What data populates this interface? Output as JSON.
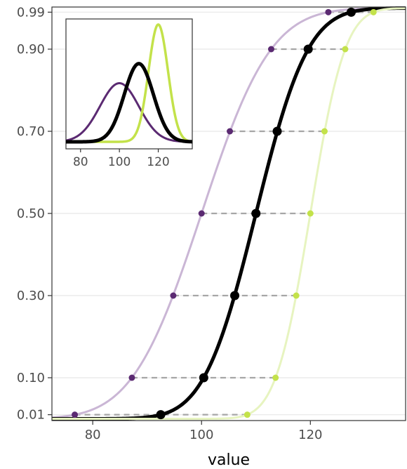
{
  "chart_data": {
    "type": "line",
    "title": "",
    "xlabel": "value",
    "ylabel": "",
    "xlim": [
      72.5,
      137.5
    ],
    "ylim": [
      0.0,
      1.0
    ],
    "x_ticks": [
      80,
      100,
      120
    ],
    "x_tick_labels": [
      "80",
      "100",
      "120"
    ],
    "y_ticks": [
      0.01,
      0.1,
      0.3,
      0.5,
      0.7,
      0.9,
      0.99
    ],
    "y_tick_labels": [
      "0.01",
      "0.10",
      "0.30",
      "0.50",
      "0.70",
      "0.90",
      "0.99"
    ],
    "grid": "horizontal major gridlines at y ticks",
    "legend": "none",
    "colors": {
      "left": "#5b2a72",
      "left_light": "#cab6d5",
      "middle": "#000000",
      "right": "#c3e24a",
      "right_light": "#e7f4c0",
      "connector": "#a6a6a6"
    },
    "series": [
      {
        "color": "#5b2a72",
        "distribution": {
          "mean": 100,
          "sd": 10
        },
        "points": [
          {
            "x": 76.7,
            "y": 0.01
          },
          {
            "x": 87.2,
            "y": 0.1
          },
          {
            "x": 94.8,
            "y": 0.3
          },
          {
            "x": 100.0,
            "y": 0.5
          },
          {
            "x": 105.2,
            "y": 0.7
          },
          {
            "x": 112.8,
            "y": 0.9
          },
          {
            "x": 123.3,
            "y": 0.99
          }
        ]
      },
      {
        "color": "#000000",
        "distribution": {
          "mean": 110,
          "sd": 7.5
        },
        "points": [
          {
            "x": 92.5,
            "y": 0.01
          },
          {
            "x": 100.4,
            "y": 0.1
          },
          {
            "x": 106.1,
            "y": 0.3
          },
          {
            "x": 110.0,
            "y": 0.5
          },
          {
            "x": 113.9,
            "y": 0.7
          },
          {
            "x": 119.6,
            "y": 0.9
          },
          {
            "x": 127.5,
            "y": 0.99
          }
        ]
      },
      {
        "color": "#c3e24a",
        "distribution": {
          "mean": 120,
          "sd": 5
        },
        "points": [
          {
            "x": 108.4,
            "y": 0.01
          },
          {
            "x": 113.6,
            "y": 0.1
          },
          {
            "x": 117.4,
            "y": 0.3
          },
          {
            "x": 120.0,
            "y": 0.5
          },
          {
            "x": 122.6,
            "y": 0.7
          },
          {
            "x": 126.4,
            "y": 0.9
          },
          {
            "x": 131.6,
            "y": 0.99
          }
        ]
      }
    ],
    "inset": {
      "type": "density",
      "xlim": [
        72.5,
        137.5
      ],
      "x_ticks": [
        80,
        100,
        120
      ],
      "x_tick_labels": [
        "80",
        "100",
        "120"
      ]
    }
  }
}
